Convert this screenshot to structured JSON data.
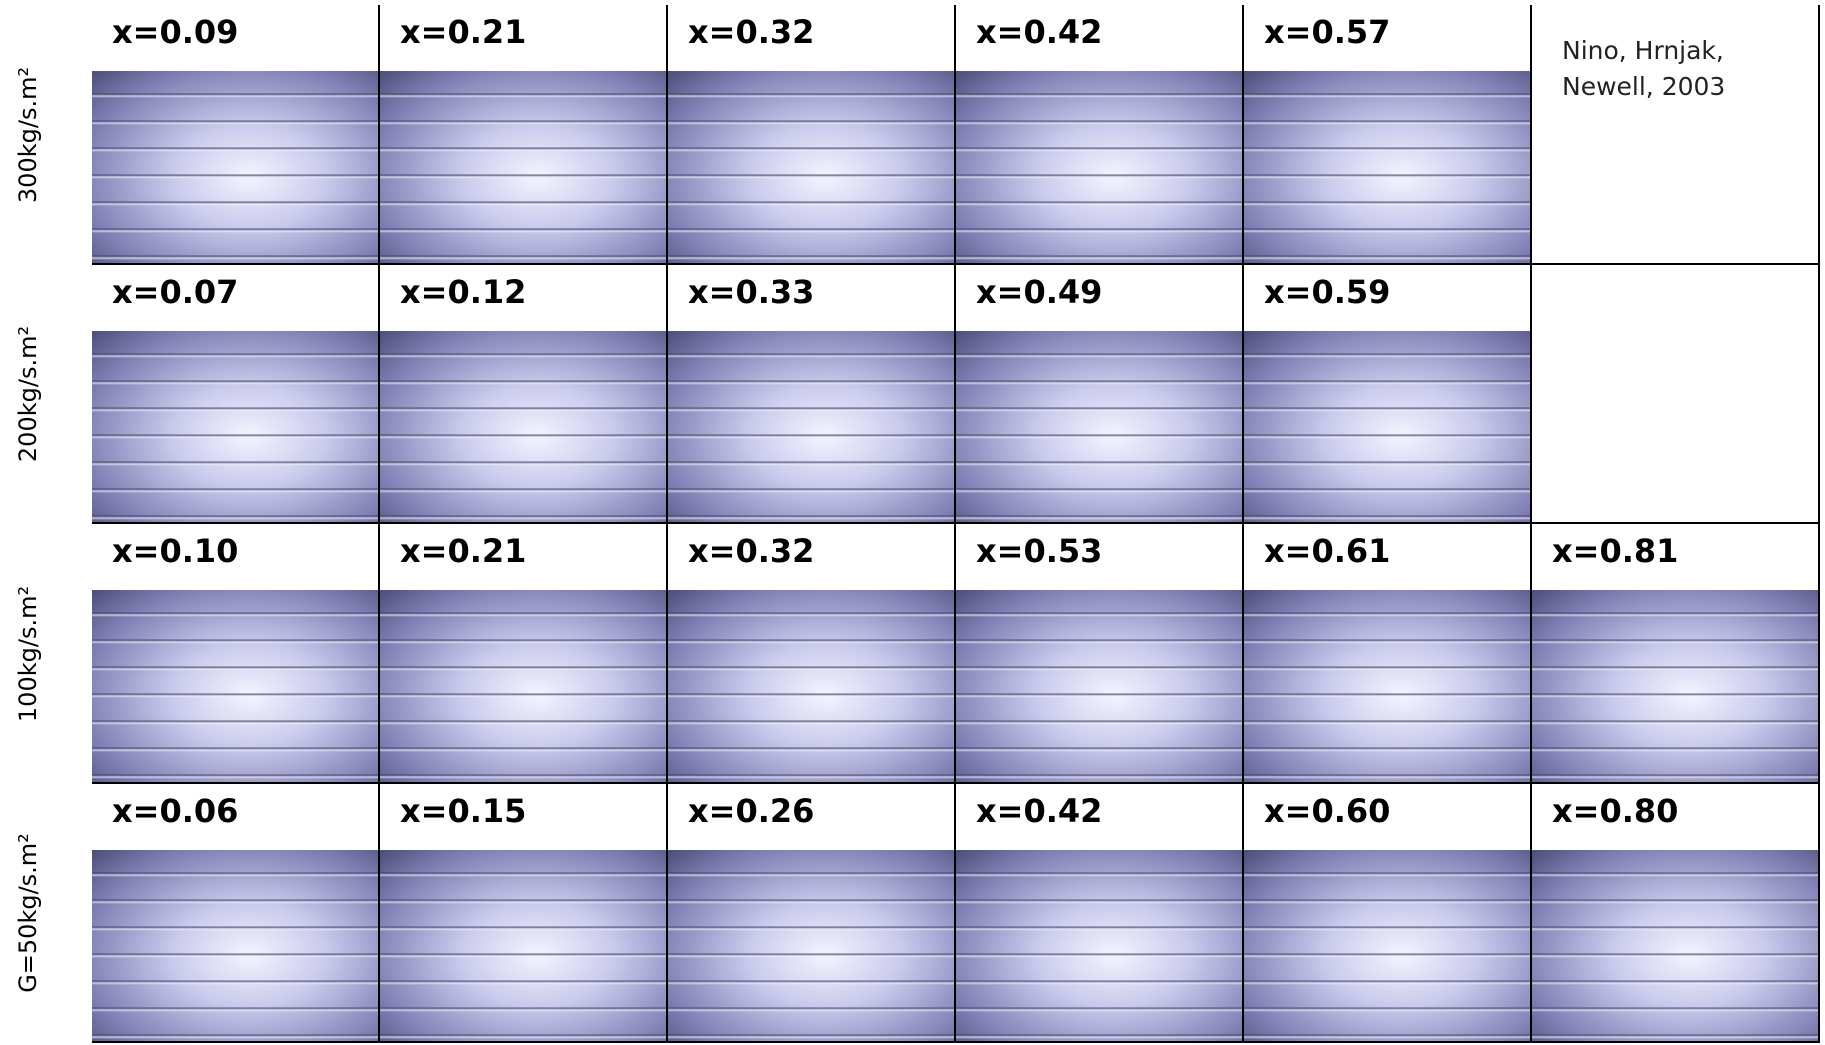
{
  "note": [
    "Nino, Hrnjak,",
    "Newell, 2003"
  ],
  "rows": [
    {
      "label": "300kg/s.m²",
      "cells": [
        "x=0.09",
        "x=0.21",
        "x=0.32",
        "x=0.42",
        "x=0.57"
      ]
    },
    {
      "label": "200kg/s.m²",
      "cells": [
        "x=0.07",
        "x=0.12",
        "x=0.33",
        "x=0.49",
        "x=0.59"
      ]
    },
    {
      "label": "100kg/s.m²",
      "cells": [
        "x=0.10",
        "x=0.21",
        "x=0.32",
        "x=0.53",
        "x=0.61",
        "x=0.81"
      ]
    },
    {
      "label": "G=50kg/s.m²",
      "cells": [
        "x=0.06",
        "x=0.15",
        "x=0.26",
        "x=0.42",
        "x=0.60",
        "x=0.80"
      ]
    }
  ]
}
